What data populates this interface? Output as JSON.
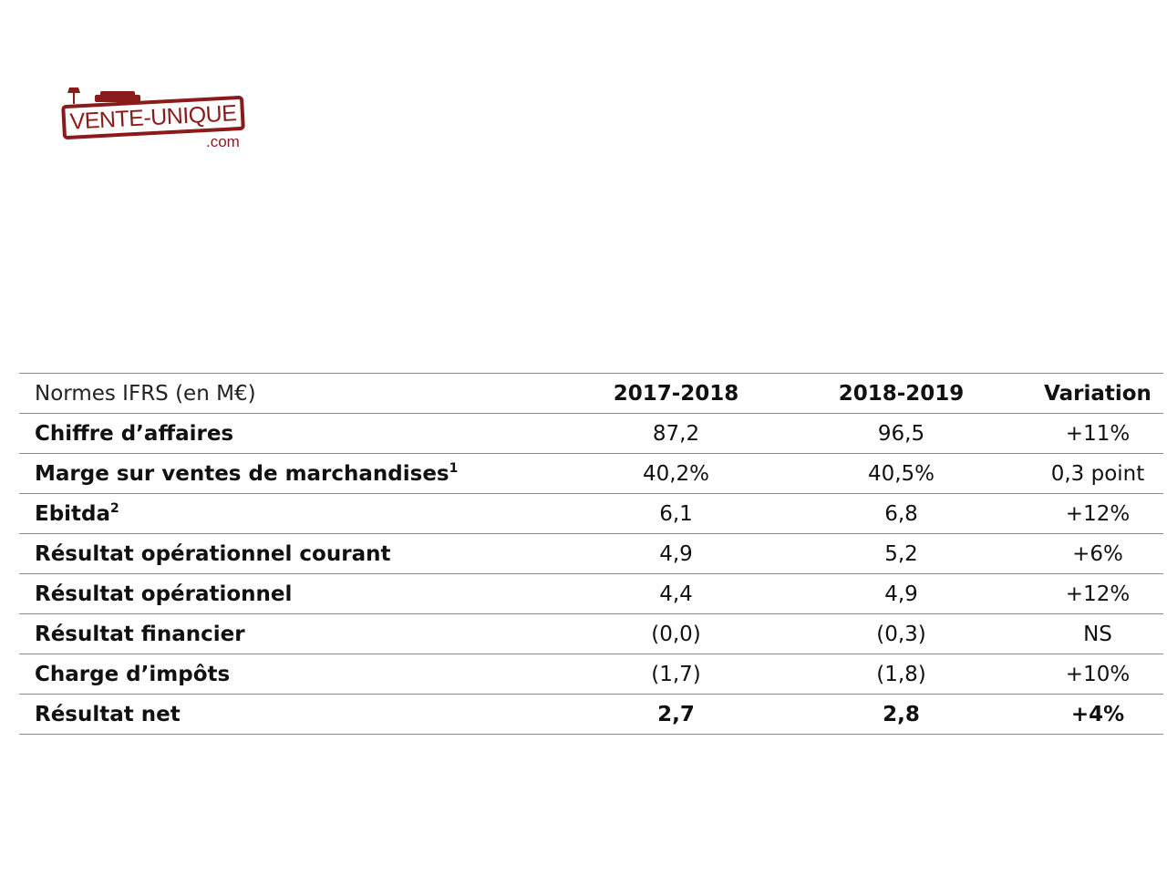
{
  "logo": {
    "main_text": "VENTE-UNIQUE",
    "suffix": ".com",
    "brand_color": "#8b1a1a",
    "icons": [
      "lamp-icon",
      "sofa-icon"
    ]
  },
  "table": {
    "header": {
      "label": "Normes IFRS (en M€)",
      "col1": "2017-2018",
      "col2": "2018-2019",
      "col3": "Variation"
    },
    "rows": [
      {
        "label": "Chiffre d’affaires",
        "sup": "",
        "v1": "87,2",
        "v2": "96,5",
        "var": "+11%"
      },
      {
        "label": "Marge sur ventes de marchandises",
        "sup": "1",
        "v1": "40,2%",
        "v2": "40,5%",
        "var": "0,3 point"
      },
      {
        "label": "Ebitda",
        "sup": "2",
        "v1": "6,1",
        "v2": "6,8",
        "var": "+12%"
      },
      {
        "label": "Résultat opérationnel courant",
        "sup": "",
        "v1": "4,9",
        "v2": "5,2",
        "var": "+6%"
      },
      {
        "label": "Résultat opérationnel",
        "sup": "",
        "v1": "4,4",
        "v2": "4,9",
        "var": "+12%"
      },
      {
        "label": "Résultat financier",
        "sup": "",
        "v1": "(0,0)",
        "v2": "(0,3)",
        "var": "NS"
      },
      {
        "label": "Charge d’impôts",
        "sup": "",
        "v1": "(1,7)",
        "v2": "(1,8)",
        "var": "+10%"
      },
      {
        "label": "Résultat net",
        "sup": "",
        "v1": "2,7",
        "v2": "2,8",
        "var": "+4%"
      }
    ]
  }
}
